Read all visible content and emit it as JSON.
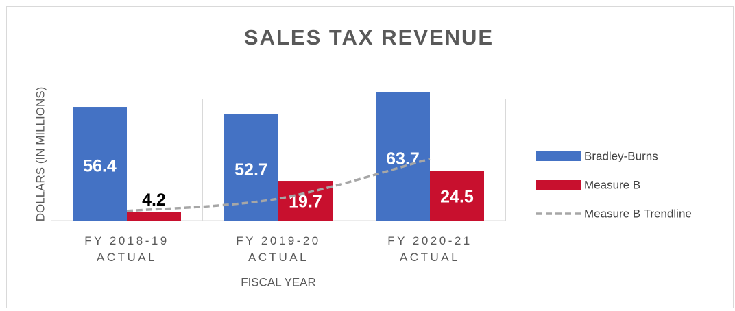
{
  "chart_data": {
    "type": "bar",
    "title": "SALES TAX REVENUE",
    "y_label": "DOLLARS (IN MILLIONS)",
    "x_label": "FISCAL YEAR",
    "categories": [
      "FY 2018-19 ACTUAL",
      "FY 2019-20 ACTUAL",
      "FY 2020-21 ACTUAL"
    ],
    "series": [
      {
        "name": "Bradley-Burns",
        "type": "bar",
        "color": "#4472c4",
        "values": [
          56.4,
          52.7,
          63.7
        ]
      },
      {
        "name": "Measure B",
        "type": "bar",
        "color": "#c8102e",
        "values": [
          4.2,
          19.7,
          24.5
        ]
      },
      {
        "name": "Measure B Trendline",
        "type": "line",
        "dashed": true,
        "color": "#a6a6a6",
        "values": [
          4.8,
          10.9,
          30.6
        ]
      }
    ],
    "data_labels": true,
    "ylim": [
      0,
      70
    ],
    "grid": true,
    "legend": "right"
  }
}
